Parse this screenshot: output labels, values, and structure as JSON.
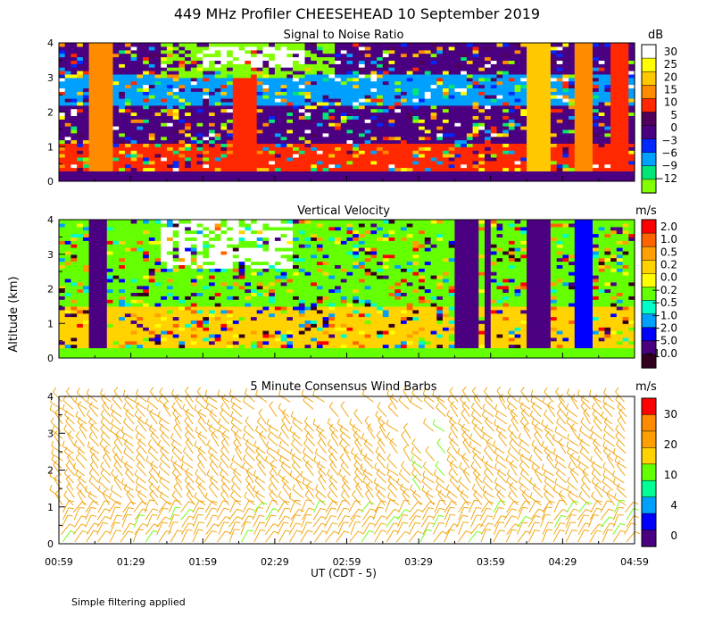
{
  "title": "449 MHz Profiler CHEESEHEAD 10 September 2019",
  "ylabel": "Altitude (km)",
  "xlabel": "UT  (CDT - 5)",
  "x_ticks": [
    "00:59",
    "01:29",
    "01:59",
    "02:29",
    "02:59",
    "03:29",
    "03:59",
    "04:29",
    "04:59"
  ],
  "y_ticks": [
    "0",
    "1",
    "2",
    "3",
    "4"
  ],
  "footnote": "Simple filtering applied",
  "chart_data": [
    {
      "type": "heatmap",
      "title": "Signal to Noise Ratio",
      "units": "dB",
      "xlabel": "UT  (CDT - 5)",
      "ylabel": "Altitude (km)",
      "xlim": [
        "00:59",
        "04:59"
      ],
      "ylim": [
        0,
        4
      ],
      "colorbar": {
        "labels": [
          "30",
          "25",
          "20",
          "15",
          "10",
          "5",
          "0",
          "−3",
          "−6",
          "−9",
          "−12"
        ],
        "colors": [
          "#ffffff",
          "#ffff00",
          "#ffc800",
          "#ff8c00",
          "#ff2800",
          "#50005a",
          "#4b0082",
          "#0028ff",
          "#00a0ff",
          "#00e678",
          "#82ff00"
        ]
      },
      "bands": [
        {
          "from": 0.3,
          "to": 1.0,
          "base": "#ff2800"
        },
        {
          "from": 1.0,
          "to": 2.2,
          "base": "#4b0082"
        },
        {
          "from": 2.2,
          "to": 3.1,
          "base": "#00a0ff"
        },
        {
          "from": 3.1,
          "to": 4.0,
          "base": "#4b0082"
        }
      ],
      "features": [
        {
          "kind": "col",
          "t0": 1.2,
          "t1": 1.35,
          "color": "#ff8c00"
        },
        {
          "kind": "col",
          "t0": 2.2,
          "t1": 2.35,
          "color": "#ff2800"
        },
        {
          "kind": "col",
          "t0": 4.25,
          "t1": 4.4,
          "color": "#ffc800"
        },
        {
          "kind": "col",
          "t0": 4.55,
          "t1": 4.7,
          "color": "#ff8c00"
        },
        {
          "kind": "col",
          "t0": 4.8,
          "t1": 4.92,
          "color": "#ff2800"
        },
        {
          "kind": "box",
          "t0": 1.7,
          "t1": 2.9,
          "z0": 3.0,
          "z1": 4.0,
          "color": "#82ff00"
        },
        {
          "kind": "box",
          "t0": 2.0,
          "t1": 2.7,
          "z0": 3.3,
          "z1": 3.9,
          "color": "#ffffff"
        }
      ]
    },
    {
      "type": "heatmap",
      "title": "Vertical Velocity",
      "units": "m/s",
      "xlabel": "UT  (CDT - 5)",
      "ylabel": "Altitude (km)",
      "xlim": [
        "00:59",
        "04:59"
      ],
      "ylim": [
        0,
        4
      ],
      "colorbar": {
        "labels": [
          "2.0",
          "1.0",
          "0.5",
          "0.2",
          "0.0",
          "−0.2",
          "−0.5",
          "−1.0",
          "−2.0",
          "−5.0",
          "−10.0"
        ],
        "colors": [
          "#ff0000",
          "#ff6400",
          "#ffa000",
          "#ffd200",
          "#ffff00",
          "#64ff00",
          "#00ffc8",
          "#00a0ff",
          "#0000ff",
          "#4b0082",
          "#32001e"
        ]
      },
      "bands": [
        {
          "from": 0.3,
          "to": 1.5,
          "base": "#ffd200"
        },
        {
          "from": 1.5,
          "to": 3.0,
          "base": "#64ff00"
        },
        {
          "from": 3.0,
          "to": 4.0,
          "base": "#64ff00"
        }
      ],
      "features": [
        {
          "kind": "col",
          "t0": 1.2,
          "t1": 1.3,
          "color": "#4b0082"
        },
        {
          "kind": "col",
          "t0": 3.73,
          "t1": 3.88,
          "color": "#4b0082"
        },
        {
          "kind": "col",
          "t0": 3.95,
          "t1": 4.0,
          "color": "#4b0082"
        },
        {
          "kind": "col",
          "t0": 4.25,
          "t1": 4.4,
          "color": "#4b0082"
        },
        {
          "kind": "col",
          "t0": 4.55,
          "t1": 4.7,
          "color": "#0000ff"
        },
        {
          "kind": "box",
          "t0": 1.7,
          "t1": 2.6,
          "z0": 2.6,
          "z1": 4.0,
          "color": "#ffffff"
        }
      ]
    },
    {
      "type": "scatter",
      "title": "5 Minute Consensus Wind Barbs",
      "units": "m/s",
      "xlabel": "UT  (CDT - 5)",
      "ylabel": "Altitude (km)",
      "xlim": [
        "00:59",
        "04:59"
      ],
      "ylim": [
        0,
        4
      ],
      "colorbar": {
        "labels": [
          "30",
          "20",
          "10",
          "4",
          "0"
        ],
        "colors": [
          "#ff0000",
          "#ff8c00",
          "#ffa000",
          "#ffd200",
          "#64ff00",
          "#00ff96",
          "#00a0ff",
          "#0000ff",
          "#4b0082"
        ]
      },
      "barb_color": "#f0a000",
      "barb_secondary_color": "#64ff00",
      "barb_direction": "southwesterly"
    }
  ]
}
